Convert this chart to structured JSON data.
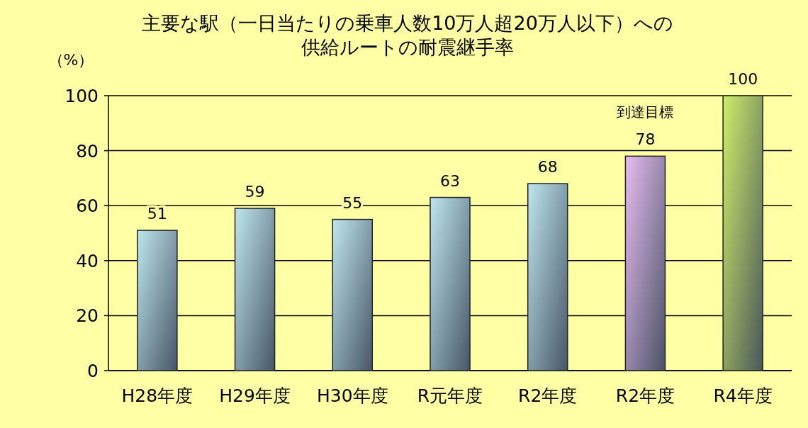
{
  "chart_data": {
    "type": "bar",
    "title": "主要な駅（一日当たりの乗車人数10万人超20万人以下）への供給ルートの耐震継手率",
    "ylabel": "（%）",
    "categories": [
      "H28年度",
      "H29年度",
      "H30年度",
      "R元年度",
      "R2年度",
      "R2年度",
      "R4年度"
    ],
    "values": [
      51,
      59,
      55,
      63,
      68,
      78,
      100
    ],
    "colors": [
      "#bfe6ee",
      "#bfe6ee",
      "#bfe6ee",
      "#bfe6ee",
      "#bfe6ee",
      "#e6bdf0",
      "#cfee6a"
    ],
    "annotations": [
      "到達目標"
    ],
    "ylim": [
      0,
      100
    ],
    "yticks": [
      0,
      20,
      40,
      60,
      80,
      100
    ],
    "grid": "y",
    "data_labels": true
  }
}
